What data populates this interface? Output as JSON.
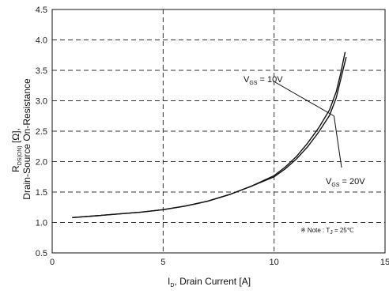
{
  "chart_data": {
    "type": "line",
    "xlabel_var": "I",
    "xlabel_sub": "D",
    "xlabel_rest": ", Drain Current [A]",
    "ylabel_line1_var": "R",
    "ylabel_line1_sub": "DS(ON)",
    "ylabel_line1_rest": " [Ω],",
    "ylabel_line2": "Drain-Source On-Resistance",
    "xlim": [
      0,
      15
    ],
    "ylim": [
      0.5,
      4.5
    ],
    "xticks": [
      "0",
      "5",
      "10",
      "15"
    ],
    "yticks": [
      "0.5",
      "1.0",
      "1.5",
      "2.0",
      "2.5",
      "3.0",
      "3.5",
      "4.0",
      "4.5"
    ],
    "grid": true,
    "series": [
      {
        "name": "VGS = 10V",
        "x": [
          0.9,
          2,
          3,
          4,
          5,
          6,
          7,
          8,
          9,
          10,
          10.5,
          11,
          11.5,
          12,
          12.5,
          12.8,
          13.0,
          13.2
        ],
        "y": [
          1.08,
          1.11,
          1.14,
          1.17,
          1.21,
          1.27,
          1.35,
          1.46,
          1.6,
          1.77,
          1.91,
          2.08,
          2.3,
          2.55,
          2.85,
          3.15,
          3.45,
          3.8
        ]
      },
      {
        "name": "VGS = 20V",
        "x": [
          0.9,
          2,
          3,
          4,
          5,
          6,
          7,
          8,
          9,
          10,
          10.5,
          11,
          11.5,
          12,
          12.5,
          12.8,
          13.0,
          13.25
        ],
        "y": [
          1.08,
          1.11,
          1.14,
          1.17,
          1.21,
          1.27,
          1.35,
          1.46,
          1.6,
          1.75,
          1.88,
          2.04,
          2.24,
          2.48,
          2.76,
          3.05,
          3.35,
          3.72
        ]
      }
    ],
    "annotations": {
      "vgs10_var": "V",
      "vgs10_sub": "GS",
      "vgs10_rest": " = 10V",
      "vgs20_var": "V",
      "vgs20_sub": "GS",
      "vgs20_rest": " = 20V",
      "note_prefix": "※ Note : T",
      "note_sub": "J",
      "note_rest": " = 25℃"
    }
  }
}
